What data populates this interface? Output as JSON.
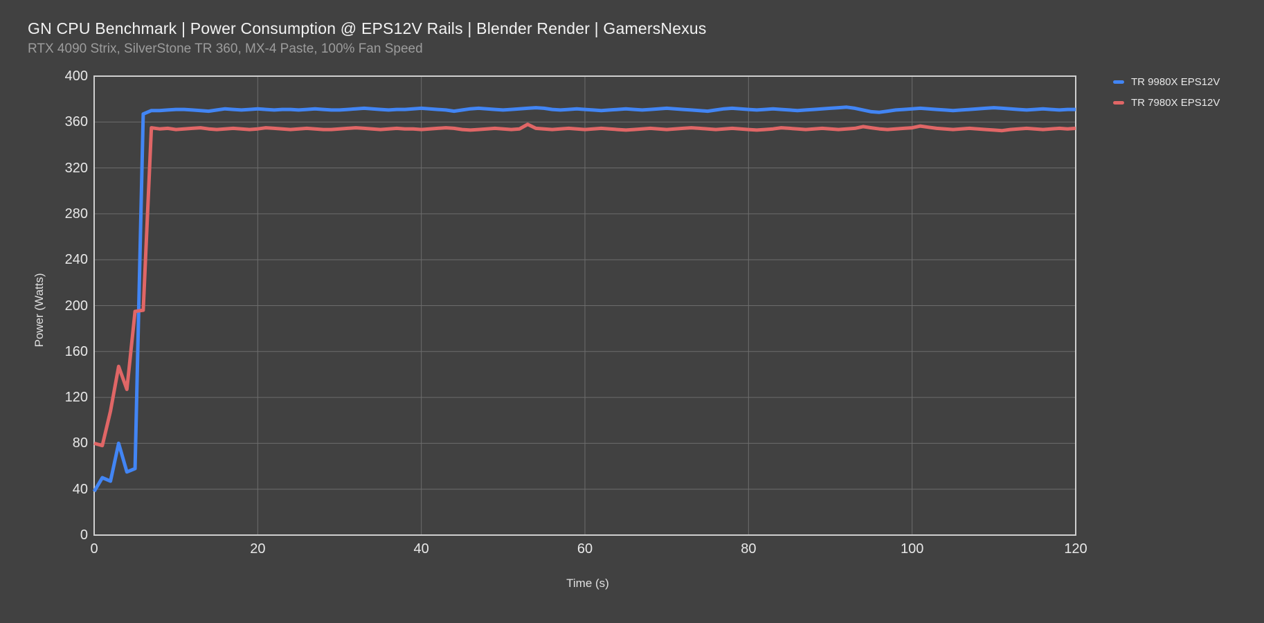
{
  "header": {
    "title": "GN CPU Benchmark | Power Consumption @ EPS12V Rails | Blender Render | GamersNexus",
    "subtitle": "RTX 4090 Strix, SilverStone TR 360, MX-4 Paste, 100% Fan Speed"
  },
  "theme": {
    "background": "#414141",
    "title_color": "#f2f2f2",
    "subtitle_color": "#9c9c9c",
    "tick_label_color": "#e8e8e8",
    "axis_title_color": "#e0e0e0",
    "frame_color": "#d0d0d0",
    "grid_color": "#6d6d6d"
  },
  "chart_data": {
    "type": "line",
    "title": "GN CPU Benchmark | Power Consumption @ EPS12V Rails | Blender Render | GamersNexus",
    "subtitle": "RTX 4090 Strix, SilverStone TR 360, MX-4 Paste, 100% Fan Speed",
    "xlabel": "Time (s)",
    "ylabel": "Power (Watts)",
    "xlim": [
      0,
      120
    ],
    "ylim": [
      0,
      400
    ],
    "x_ticks": [
      0,
      20,
      40,
      60,
      80,
      100,
      120
    ],
    "y_ticks": [
      0,
      40,
      80,
      120,
      160,
      200,
      240,
      280,
      320,
      360,
      400
    ],
    "grid": true,
    "legend_position": "top-right",
    "x_start": 0,
    "x_step": 1,
    "series": [
      {
        "name": "TR 9980X EPS12V",
        "color": "#4285f4",
        "values": [
          38,
          50,
          47,
          80,
          55,
          58,
          367,
          370,
          370,
          370.5,
          371,
          371,
          370.5,
          370,
          369.5,
          370.5,
          371.5,
          371,
          370.5,
          371,
          371.5,
          371,
          370.5,
          371,
          371,
          370.5,
          371,
          371.5,
          371,
          370.5,
          370.5,
          371,
          371.5,
          372,
          371.5,
          371,
          370.5,
          371,
          371,
          371.5,
          372,
          371.5,
          371,
          370.5,
          369.5,
          370.5,
          371.5,
          372,
          371.5,
          371,
          370.5,
          371,
          371.5,
          372,
          372.5,
          372,
          371,
          370.5,
          371,
          371.5,
          371,
          370.5,
          370,
          370.5,
          371,
          371.5,
          371,
          370.5,
          371,
          371.5,
          372,
          371.5,
          371,
          370.5,
          370,
          369.5,
          370.5,
          371.5,
          372,
          371.5,
          371,
          370.5,
          371,
          371.5,
          371,
          370.5,
          370,
          370.5,
          371,
          371.5,
          372,
          372.5,
          373,
          372,
          370.5,
          369,
          368.5,
          369.5,
          370.5,
          371,
          371.5,
          372,
          371.5,
          371,
          370.5,
          370,
          370.5,
          371,
          371.5,
          372,
          372.5,
          372,
          371.5,
          371,
          370.5,
          371,
          371.5,
          371,
          370.5,
          371,
          371
        ]
      },
      {
        "name": "TR 7980X EPS12V",
        "color": "#e06666",
        "values": [
          80,
          78,
          108,
          147,
          127,
          195,
          196,
          355,
          354,
          354.5,
          353.5,
          354,
          354.5,
          355,
          354,
          353.5,
          354,
          354.5,
          354,
          353.5,
          354,
          355,
          354.5,
          354,
          353.5,
          354,
          354.5,
          354,
          353.5,
          353.5,
          354,
          354.5,
          355,
          354.5,
          354,
          353.5,
          354,
          354.5,
          354,
          354,
          353.5,
          354,
          354.5,
          355,
          354.5,
          353.5,
          353,
          353.5,
          354,
          354.5,
          354,
          353.5,
          354,
          358,
          354.5,
          354,
          353.5,
          354,
          354.5,
          354,
          353.5,
          354,
          354.5,
          354,
          353.5,
          353,
          353.5,
          354,
          354.5,
          354,
          353.5,
          354,
          354.5,
          355,
          354.5,
          354,
          353.5,
          354,
          354.5,
          354,
          353.5,
          353,
          353.5,
          354,
          355,
          354.5,
          354,
          353.5,
          354,
          354.5,
          354,
          353.5,
          354,
          354.5,
          356,
          355,
          354,
          353.5,
          354,
          354.5,
          355,
          356.5,
          355.5,
          354.5,
          354,
          353.5,
          354,
          354.5,
          354,
          353.5,
          353,
          352.5,
          353.5,
          354,
          354.5,
          354,
          353.5,
          354,
          354.5,
          354,
          354.5
        ]
      }
    ]
  }
}
